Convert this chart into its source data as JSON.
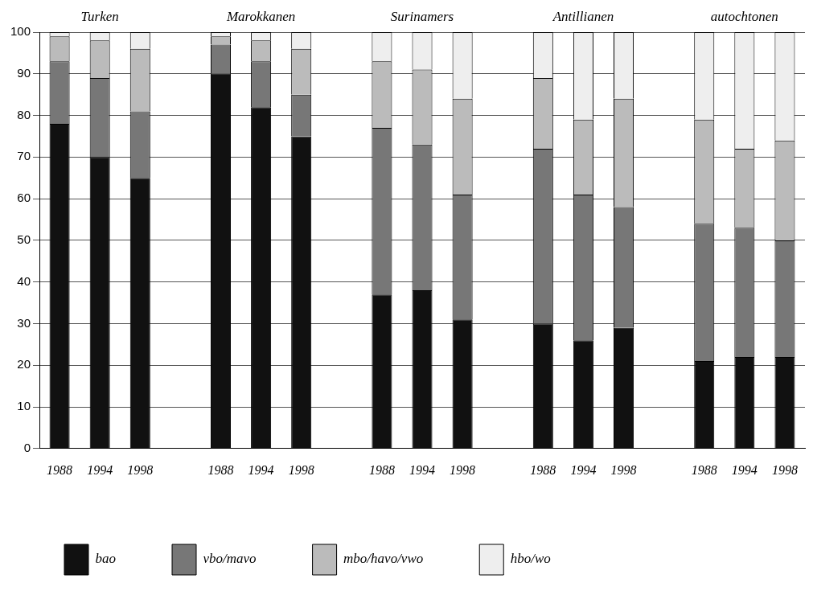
{
  "chart_data": {
    "type": "bar",
    "stacked": true,
    "grid": "y",
    "legend": "bottom",
    "ylim": [
      0,
      100
    ],
    "yticks": [
      0,
      10,
      20,
      30,
      40,
      50,
      60,
      70,
      80,
      90,
      100
    ],
    "categories": [
      "1988",
      "1994",
      "1998",
      null,
      "1988",
      "1994",
      "1998",
      null,
      "1988",
      "1994",
      "1998",
      null,
      "1988",
      "1994",
      "1998",
      null,
      "1988",
      "1994",
      "1998"
    ],
    "series": [
      {
        "name": "bao",
        "color": "#111111",
        "values": [
          78,
          70,
          65,
          null,
          90,
          82,
          75,
          null,
          37,
          38,
          31,
          null,
          30,
          26,
          29,
          null,
          21,
          22,
          22
        ]
      },
      {
        "name": "vbo/mavo",
        "color": "#777777",
        "values": [
          15,
          19,
          16,
          null,
          7,
          11,
          10,
          null,
          40,
          35,
          30,
          null,
          42,
          35,
          29,
          null,
          33,
          31,
          28
        ]
      },
      {
        "name": "mbo/havo/vwo",
        "color": "#bbbbbb",
        "values": [
          6,
          9,
          15,
          null,
          2,
          5,
          11,
          null,
          16,
          18,
          23,
          null,
          17,
          18,
          26,
          null,
          25,
          19,
          24
        ]
      },
      {
        "name": "hbo/wo",
        "color": "#eeeeee",
        "values": [
          1,
          2,
          4,
          null,
          1,
          2,
          4,
          null,
          7,
          9,
          16,
          null,
          11,
          21,
          16,
          null,
          21,
          28,
          26
        ]
      }
    ],
    "annotations": [
      "Turken",
      "Marokkanen",
      "Surinamers",
      "Antillianen",
      "autochtonen"
    ]
  }
}
